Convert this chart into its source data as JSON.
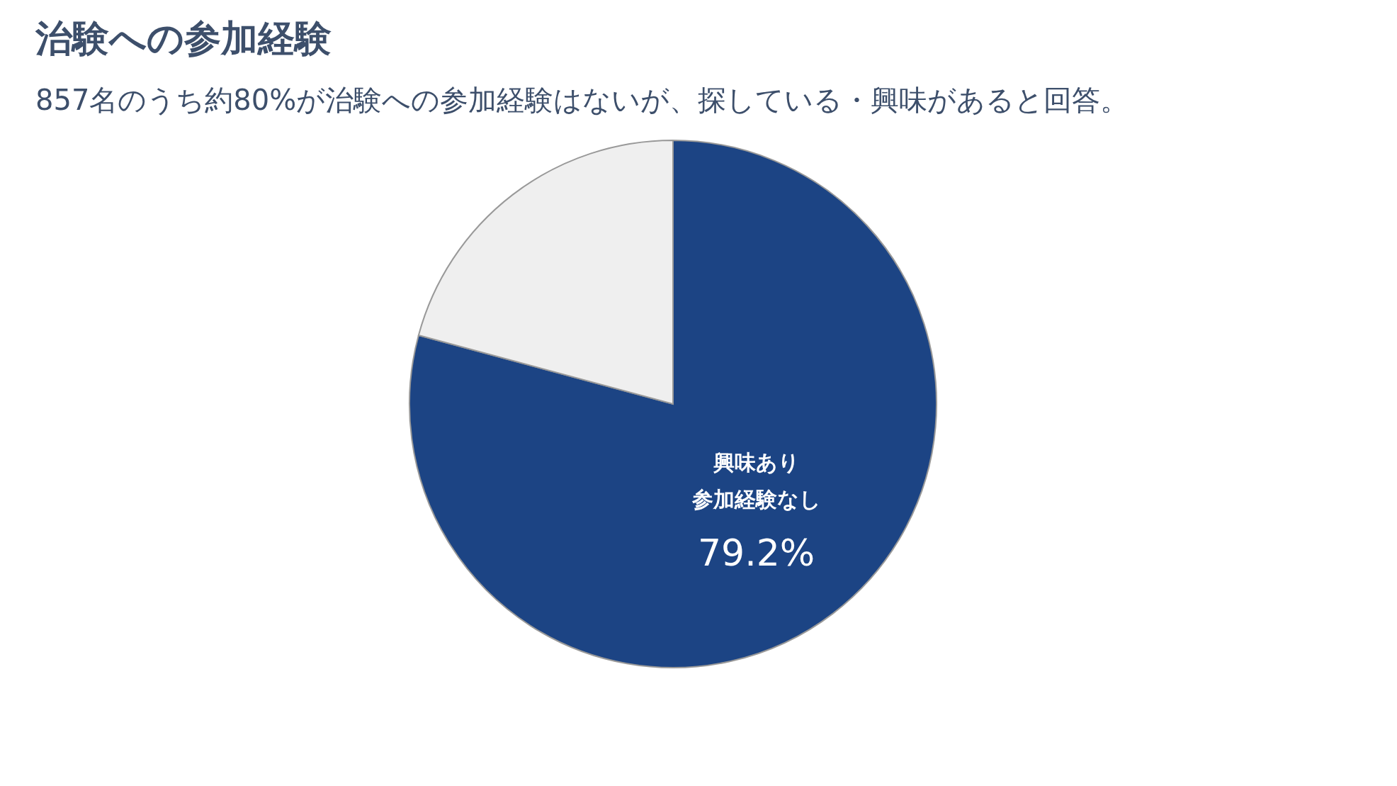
{
  "chart_data": {
    "type": "pie",
    "title": "治験への参加経験",
    "subtitle": "857名のうち約80%が治験への参加経験はないが、探している・興味があると回答。",
    "categories": [
      "興味あり参加経験なし",
      null
    ],
    "values": [
      79.2,
      20.8
    ],
    "colors": [
      "#1c4484",
      "#efefef"
    ],
    "value_labels": [
      "79.2%",
      null
    ],
    "legend": false
  }
}
